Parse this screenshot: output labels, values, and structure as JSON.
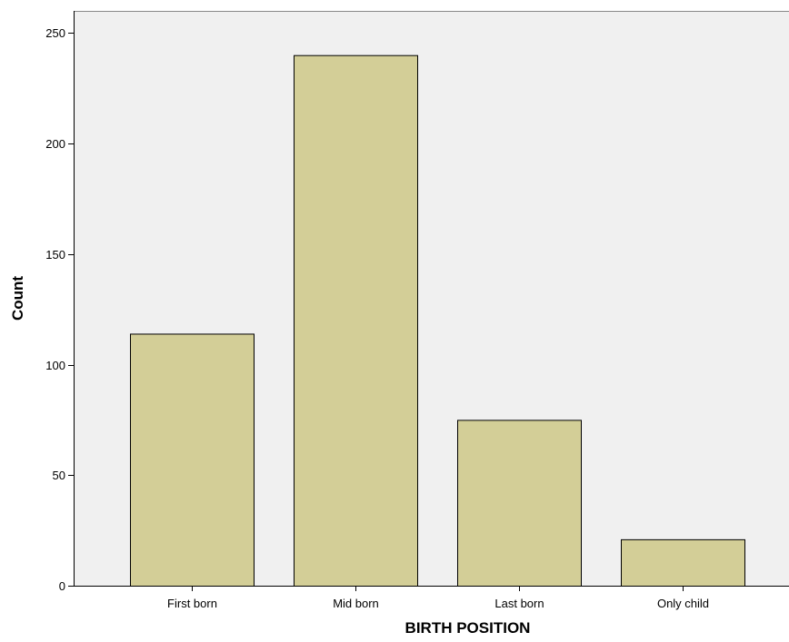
{
  "chart_data": {
    "type": "bar",
    "categories": [
      "First born",
      "Mid born",
      "Last born",
      "Only child"
    ],
    "values": [
      114,
      240,
      75,
      21
    ],
    "xlabel": "BIRTH POSITION",
    "ylabel": "Count",
    "ylim": [
      0,
      260
    ],
    "yticks": [
      0,
      50,
      100,
      150,
      200,
      250
    ],
    "grid": false,
    "legend": "none",
    "colors": {
      "plot_background": "#f0f0f0",
      "bar_fill": "#d3ce97",
      "bar_stroke": "#000000",
      "axis": "#000000"
    }
  }
}
